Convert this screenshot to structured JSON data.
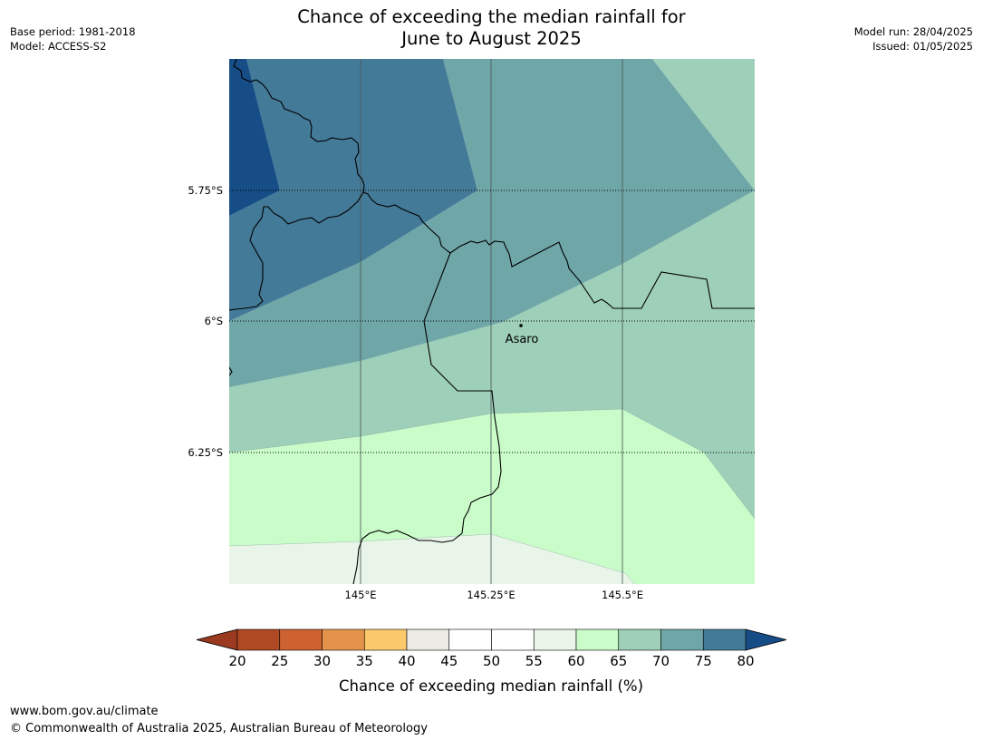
{
  "header": {
    "title_line1": "Chance of exceeding the median rainfall for",
    "title_line2": "June to August 2025",
    "base_period": "Base period: 1981-2018",
    "model": "Model: ACCESS-S2",
    "model_run": "Model run: 28/04/2025",
    "issued": "Issued: 01/05/2025"
  },
  "map": {
    "lat_labels": [
      "5.75°S",
      "6°S",
      "6.25°S"
    ],
    "lon_labels": [
      "145°E",
      "145.25°E",
      "145.5°E"
    ],
    "place": {
      "name": "Asaro"
    }
  },
  "colorbar": {
    "ticks": [
      "20",
      "25",
      "30",
      "35",
      "40",
      "45",
      "50",
      "55",
      "60",
      "65",
      "70",
      "75",
      "80"
    ],
    "colors": [
      "#b04a25",
      "#cd6230",
      "#e3944a",
      "#fcc96a",
      "#ede9e5",
      "#ffffff",
      "#ffffff",
      "#e9f5e8",
      "#c9fcc9",
      "#9ecfb8",
      "#6fa6a8",
      "#437a98"
    ],
    "under_color": "#9b3a20",
    "over_color": "#164d87",
    "label": "Chance of exceeding median rainfall (%)"
  },
  "footer": {
    "url": "www.bom.gov.au/climate",
    "copyright": "© Commonwealth of Australia 2025, Australian Bureau of Meteorology"
  }
}
